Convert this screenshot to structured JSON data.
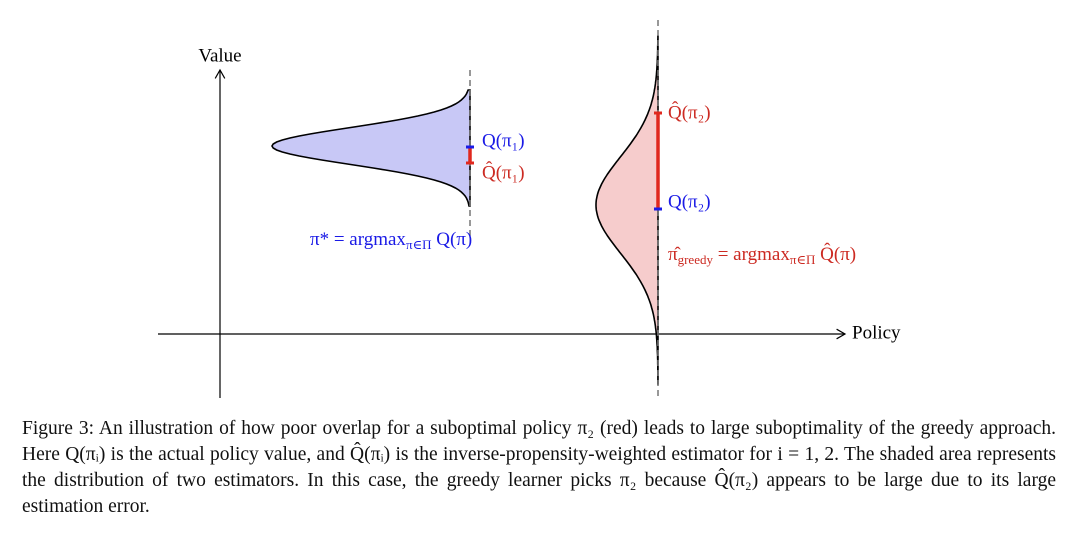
{
  "figure": {
    "y_axis_label": "Value",
    "x_axis_label": "Policy",
    "q_pi1": "Q(π₁)",
    "qhat_pi1": "Q̂(π₁)",
    "q_pi2": "Q(π₂)",
    "qhat_pi2": "Q̂(π₂)",
    "optimal": {
      "main": "π* = argmax",
      "sub": "π∈Π",
      "tail": " Q(π)"
    },
    "greedy": {
      "main": "π̂",
      "main_sub": "greedy",
      "mid": " = argmax",
      "sub": "π∈Π",
      "tail": " Q̂(π)"
    },
    "caption": "Figure 3: An illustration of how poor overlap for a suboptimal policy π₂ (red) leads to large suboptimality of the greedy approach. Here Q(πᵢ) is the actual policy value, and Q̂(πᵢ) is the inverse-propensity-weighted estimator for i = 1, 2. The shaded area represents the distribution of two estimators. In this case, the greedy learner picks π₂ because Q̂(π₂) appears to be large due to its large estimation error."
  }
}
